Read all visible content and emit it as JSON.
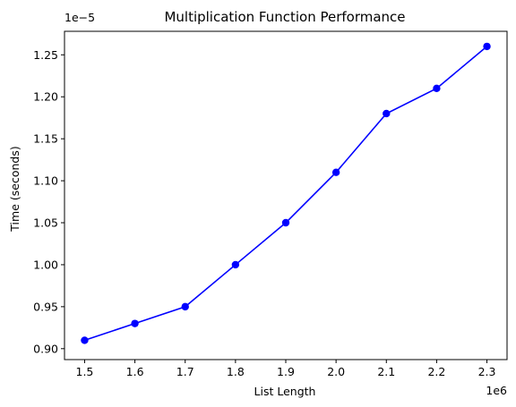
{
  "chart_data": {
    "type": "line",
    "title": "Multiplication Function Performance",
    "xlabel": "List Length",
    "ylabel": "Time (seconds)",
    "x_offset_label": "1e6",
    "y_offset_label": "1e−5",
    "x_ticks": [
      "1.5",
      "1.6",
      "1.7",
      "1.8",
      "1.9",
      "2.0",
      "2.1",
      "2.2",
      "2.3"
    ],
    "y_ticks": [
      "0.90",
      "0.95",
      "1.00",
      "1.05",
      "1.10",
      "1.15",
      "1.20",
      "1.25"
    ],
    "xlim": [
      1460000,
      2340000
    ],
    "ylim": [
      8.87e-06,
      1.278e-05
    ],
    "grid": false,
    "legend": false,
    "series": [
      {
        "color": "#0000ff",
        "marker": "circle",
        "x": [
          1500000,
          1600000,
          1700000,
          1800000,
          1900000,
          2000000,
          2100000,
          2200000,
          2300000
        ],
        "y": [
          9.1e-06,
          9.3e-06,
          9.5e-06,
          1e-05,
          1.05e-05,
          1.11e-05,
          1.18e-05,
          1.21e-05,
          1.26e-05
        ]
      }
    ]
  }
}
